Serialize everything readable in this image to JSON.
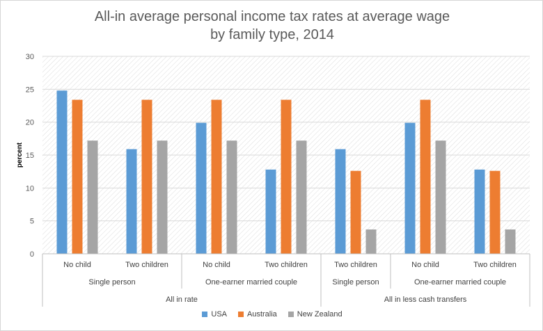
{
  "chart_data": {
    "type": "bar",
    "title_lines": [
      "All-in average personal income tax rates at average wage",
      "by family type, 2014"
    ],
    "ylabel": "percent",
    "ylim": [
      0,
      30
    ],
    "yticks": [
      0,
      5,
      10,
      15,
      20,
      25,
      30
    ],
    "grid": true,
    "legend_position": "bottom",
    "categories": [
      "No child",
      "Two children",
      "No child",
      "Two children",
      "Two children",
      "No child",
      "Two children"
    ],
    "groups_level2": [
      {
        "label": "Single person",
        "span": 2
      },
      {
        "label": "One-earner married couple",
        "span": 2
      },
      {
        "label": "Single person",
        "span": 1
      },
      {
        "label": "One-earner married couple",
        "span": 2
      }
    ],
    "groups_level1": [
      {
        "label": "All in rate",
        "span": 4
      },
      {
        "label": "All in less cash transfers",
        "span": 3
      }
    ],
    "series": [
      {
        "name": "USA",
        "color": "#5b9bd5",
        "values": [
          24.8,
          15.9,
          19.9,
          12.8,
          15.9,
          19.9,
          12.8
        ]
      },
      {
        "name": "Australia",
        "color": "#ed7d31",
        "values": [
          23.4,
          23.4,
          23.4,
          23.4,
          12.6,
          23.4,
          12.6
        ]
      },
      {
        "name": "New Zealand",
        "color": "#a5a5a5",
        "values": [
          17.2,
          17.2,
          17.2,
          17.2,
          3.7,
          17.2,
          3.7
        ]
      }
    ]
  }
}
